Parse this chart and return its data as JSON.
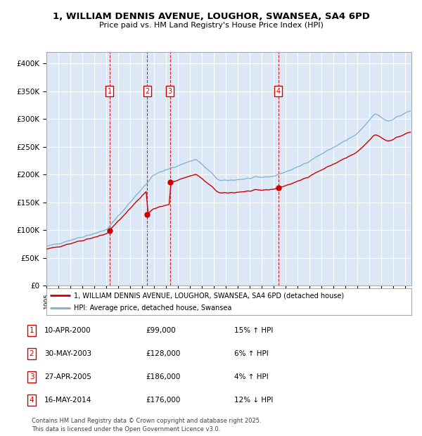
{
  "title": "1, WILLIAM DENNIS AVENUE, LOUGHOR, SWANSEA, SA4 6PD",
  "subtitle": "Price paid vs. HM Land Registry's House Price Index (HPI)",
  "background_color": "#ffffff",
  "plot_bg_color": "#dce8f5",
  "grid_color": "#ffffff",
  "ylim": [
    0,
    420000
  ],
  "yticks": [
    0,
    50000,
    100000,
    150000,
    200000,
    250000,
    300000,
    350000,
    400000
  ],
  "ytick_labels": [
    "£0",
    "£50K",
    "£100K",
    "£150K",
    "£200K",
    "£250K",
    "£300K",
    "£350K",
    "£400K"
  ],
  "sale_dates": [
    2000.28,
    2003.41,
    2005.32,
    2014.37
  ],
  "sale_prices": [
    99000,
    128000,
    186000,
    176000
  ],
  "sale_labels": [
    "1",
    "2",
    "3",
    "4"
  ],
  "sale_color": "#cc0000",
  "hpi_color": "#7ab0d4",
  "legend_sale": "1, WILLIAM DENNIS AVENUE, LOUGHOR, SWANSEA, SA4 6PD (detached house)",
  "legend_hpi": "HPI: Average price, detached house, Swansea",
  "table_entries": [
    {
      "label": "1",
      "date": "10-APR-2000",
      "price": "£99,000",
      "change": "15% ↑ HPI"
    },
    {
      "label": "2",
      "date": "30-MAY-2003",
      "price": "£128,000",
      "change": "6% ↑ HPI"
    },
    {
      "label": "3",
      "date": "27-APR-2005",
      "price": "£186,000",
      "change": "4% ↑ HPI"
    },
    {
      "label": "4",
      "date": "16-MAY-2014",
      "price": "£176,000",
      "change": "12% ↓ HPI"
    }
  ],
  "footer": "Contains HM Land Registry data © Crown copyright and database right 2025.\nThis data is licensed under the Open Government Licence v3.0."
}
